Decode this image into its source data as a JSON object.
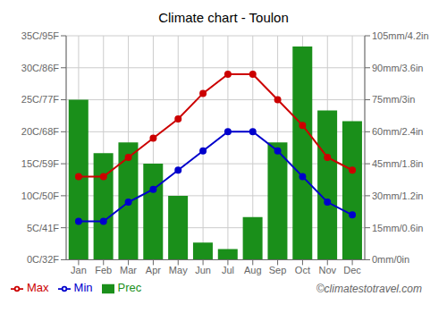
{
  "chart_data": {
    "type": "bar",
    "title": "Climate chart - Toulon",
    "categories": [
      "Jan",
      "Feb",
      "Mar",
      "Apr",
      "May",
      "Jun",
      "Jul",
      "Aug",
      "Sep",
      "Oct",
      "Nov",
      "Dec"
    ],
    "series": [
      {
        "name": "Prec",
        "type": "bar",
        "axis": "y2",
        "color": "#1a8f1a",
        "values": [
          75,
          50,
          55,
          45,
          30,
          8,
          5,
          20,
          55,
          100,
          70,
          65
        ]
      },
      {
        "name": "Min",
        "type": "line",
        "marker": "circle",
        "color": "#0000cc",
        "values": [
          6,
          6,
          9,
          11,
          14,
          17,
          20,
          20,
          17,
          13,
          9,
          7
        ]
      },
      {
        "name": "Max",
        "type": "line",
        "marker": "circle",
        "color": "#cc0000",
        "values": [
          13,
          13,
          16,
          19,
          22,
          26,
          29,
          29,
          25,
          21,
          16,
          14
        ]
      }
    ],
    "ylim": [
      0,
      35
    ],
    "yticks": [
      {
        "value": 0,
        "label": "0C/32F"
      },
      {
        "value": 5,
        "label": "5C/41F"
      },
      {
        "value": 10,
        "label": "10C/50F"
      },
      {
        "value": 15,
        "label": "15C/59F"
      },
      {
        "value": 20,
        "label": "20C/68F"
      },
      {
        "value": 25,
        "label": "25C/77F"
      },
      {
        "value": 30,
        "label": "30C/86F"
      },
      {
        "value": 35,
        "label": "35C/95F"
      }
    ],
    "y2lim": [
      0,
      105
    ],
    "y2ticks": [
      {
        "value": 0,
        "label": "0mm/0in"
      },
      {
        "value": 15,
        "label": "15mm/0.6in"
      },
      {
        "value": 30,
        "label": "30mm/1.2in"
      },
      {
        "value": 45,
        "label": "45mm/1.8in"
      },
      {
        "value": 60,
        "label": "60mm/2.4in"
      },
      {
        "value": 75,
        "label": "75mm/3in"
      },
      {
        "value": 90,
        "label": "90mm/3.6in"
      },
      {
        "value": 105,
        "label": "105mm/4.2in"
      }
    ],
    "grid": true,
    "legend": "lower left",
    "annotations": [
      "©climatestotravel.com"
    ]
  }
}
